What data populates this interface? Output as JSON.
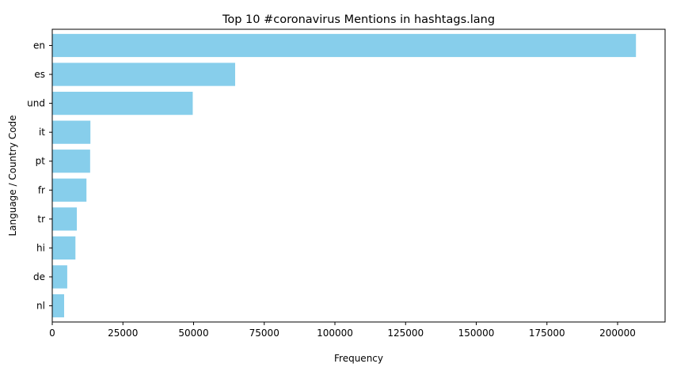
{
  "chart_data": {
    "type": "bar",
    "orientation": "horizontal",
    "title": "Top 10 #coronavirus Mentions in hashtags.lang",
    "xlabel": "Frequency",
    "ylabel": "Language / Country Code",
    "categories": [
      "en",
      "es",
      "und",
      "it",
      "pt",
      "fr",
      "tr",
      "hi",
      "de",
      "nl"
    ],
    "values": [
      206500,
      64700,
      49700,
      13500,
      13400,
      12100,
      8700,
      8200,
      5300,
      4200
    ],
    "xlim": [
      0,
      216800
    ],
    "xticks": [
      0,
      25000,
      50000,
      75000,
      100000,
      125000,
      150000,
      175000,
      200000
    ],
    "xtick_labels": [
      "0",
      "25000",
      "50000",
      "75000",
      "100000",
      "125000",
      "150000",
      "175000",
      "200000"
    ],
    "bar_color": "#87ceeb",
    "grid": false,
    "legend": "none"
  }
}
